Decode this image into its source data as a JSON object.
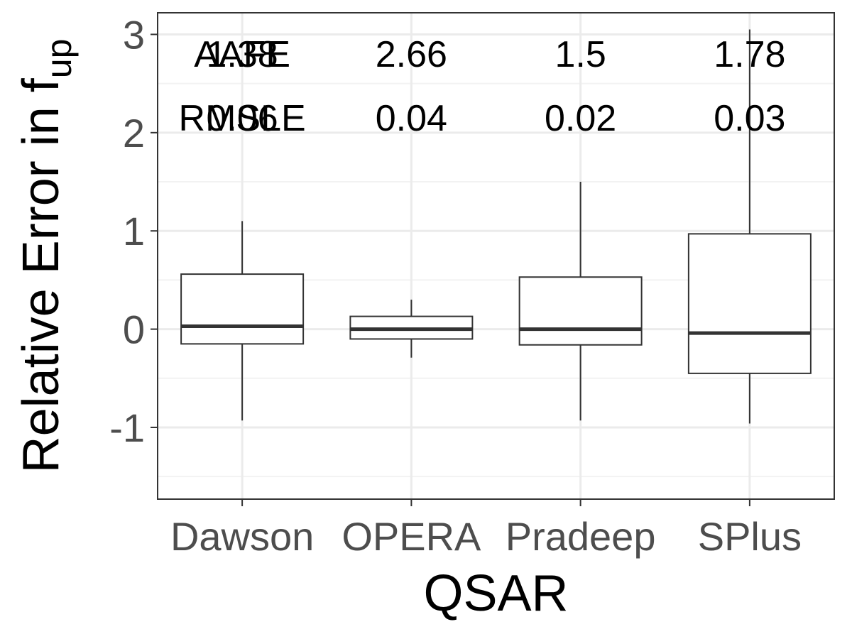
{
  "chart_data": {
    "type": "box",
    "categories": [
      "Dawson",
      "OPERA",
      "Pradeep",
      "SPlus"
    ],
    "boxes": [
      {
        "category": "Dawson",
        "whisker_low": -0.93,
        "q1": -0.15,
        "median": 0.03,
        "q3": 0.56,
        "whisker_high": 1.1
      },
      {
        "category": "OPERA",
        "whisker_low": -0.29,
        "q1": -0.1,
        "median": 0.0,
        "q3": 0.13,
        "whisker_high": 0.3
      },
      {
        "category": "Pradeep",
        "whisker_low": -0.93,
        "q1": -0.16,
        "median": 0.0,
        "q3": 0.53,
        "whisker_high": 1.5
      },
      {
        "category": "SPlus",
        "whisker_low": -0.96,
        "q1": -0.45,
        "median": -0.04,
        "q3": 0.97,
        "whisker_high": 3.05
      }
    ],
    "ylim": [
      -1.73,
      3.22
    ],
    "yticks": [
      -1,
      0,
      1,
      2,
      3
    ],
    "y_tick_labels": [
      "-1",
      "0",
      "1",
      "2",
      "3"
    ],
    "xlabel": "QSAR",
    "ylabel": "Relative Error in f",
    "ylabel_subscript": "up",
    "grid": true,
    "annotation_rows": [
      {
        "label": "AAFE",
        "y": 2.8,
        "values": [
          "1.38",
          "2.66",
          "1.5",
          "1.78"
        ]
      },
      {
        "label": "RMSLE",
        "y": 2.15,
        "values": [
          "0.06",
          "0.04",
          "0.02",
          "0.03"
        ]
      }
    ],
    "colors": {
      "background": "#ffffff",
      "panel_border": "#333333",
      "grid_major": "#ebebeb",
      "grid_minor": "#f2f2f2",
      "box_stroke": "#333333",
      "tick_label": "#4d4d4d"
    }
  }
}
